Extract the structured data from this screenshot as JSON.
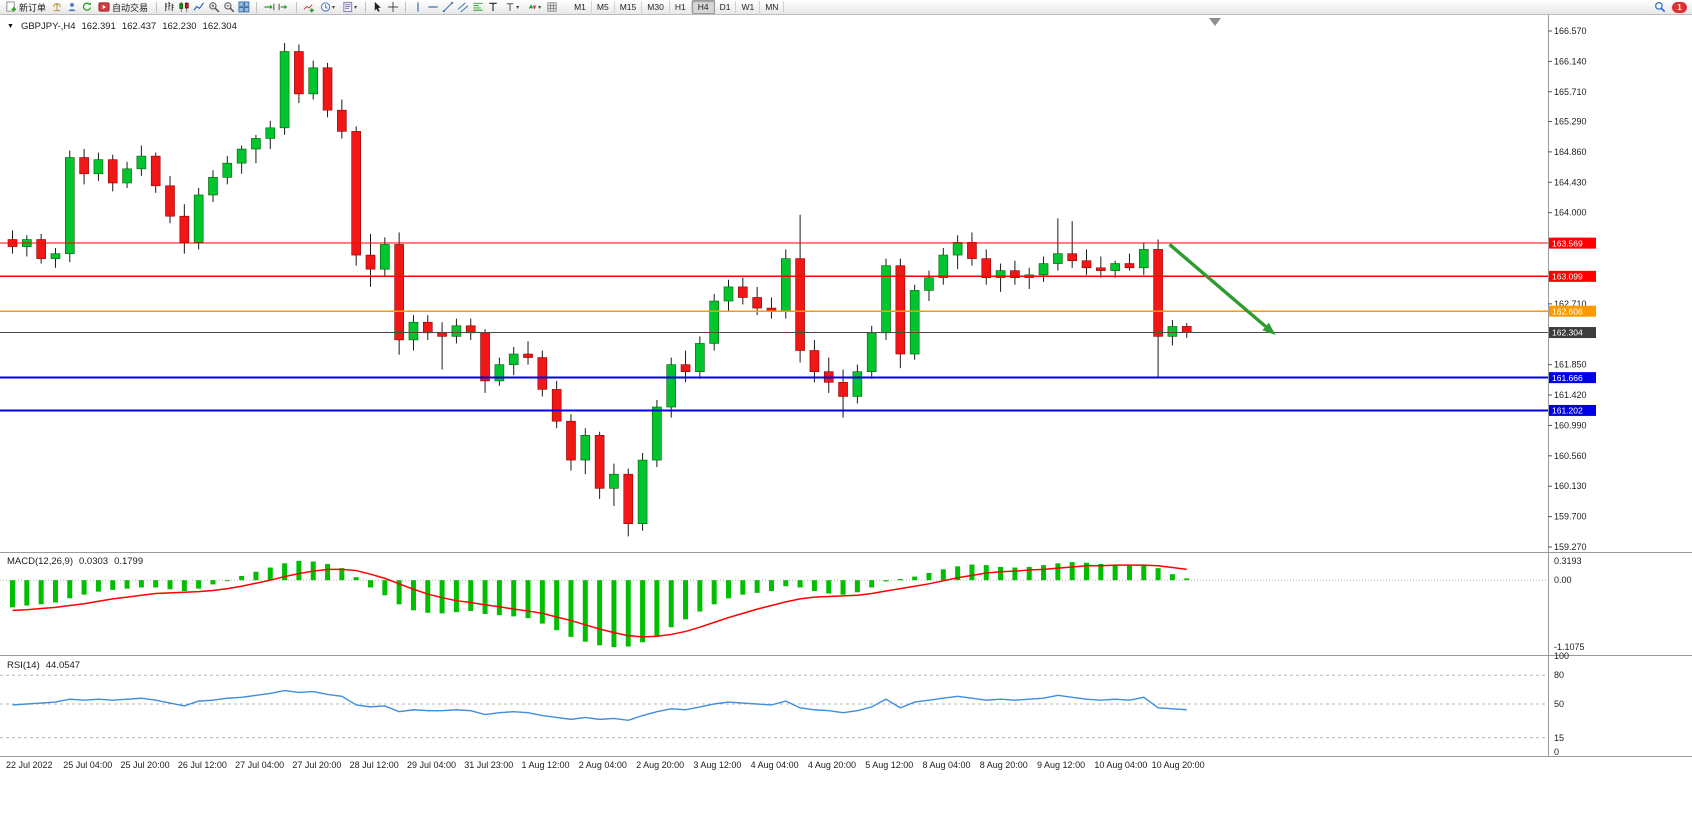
{
  "toolbar": {
    "new_order": "新订单",
    "auto_trading": "自动交易",
    "timeframes": [
      "M1",
      "M5",
      "M15",
      "M30",
      "H1",
      "H4",
      "D1",
      "W1",
      "MN"
    ],
    "active_timeframe": "H4",
    "notification_badge": "1"
  },
  "chart_header": {
    "collapse_icon": "▼",
    "symbol": "GBPJPY-,H4",
    "open": "162.391",
    "high": "162.437",
    "low": "162.230",
    "close": "162.304"
  },
  "price_axis": {
    "ticks": [
      "166.570",
      "166.140",
      "165.710",
      "165.290",
      "164.860",
      "164.430",
      "164.000",
      "162.710",
      "161.850",
      "161.420",
      "160.990",
      "160.560",
      "160.130",
      "159.700",
      "159.270"
    ],
    "line_labels": [
      {
        "text": "163.569",
        "price": 163.569,
        "color": "#FF0000"
      },
      {
        "text": "163.099",
        "price": 163.099,
        "color": "#FF0000"
      },
      {
        "text": "162.606",
        "price": 162.606,
        "color": "#FF9900"
      },
      {
        "text": "162.304",
        "price": 162.304,
        "color": "#3C3C3C"
      },
      {
        "text": "161.666",
        "price": 161.666,
        "color": "#0000E6"
      },
      {
        "text": "161.202",
        "price": 161.202,
        "color": "#0000E6"
      }
    ]
  },
  "time_axis": {
    "labels": [
      {
        "index": 0,
        "text": "22 Jul 2022"
      },
      {
        "index": 4,
        "text": "25 Jul 04:00"
      },
      {
        "index": 8,
        "text": "25 Jul 20:00"
      },
      {
        "index": 12,
        "text": "26 Jul 12:00"
      },
      {
        "index": 16,
        "text": "27 Jul 04:00"
      },
      {
        "index": 20,
        "text": "27 Jul 20:00"
      },
      {
        "index": 24,
        "text": "28 Jul 12:00"
      },
      {
        "index": 28,
        "text": "29 Jul 04:00"
      },
      {
        "index": 32,
        "text": "31 Jul 23:00"
      },
      {
        "index": 36,
        "text": "1 Aug 12:00"
      },
      {
        "index": 40,
        "text": "2 Aug 04:00"
      },
      {
        "index": 44,
        "text": "2 Aug 20:00"
      },
      {
        "index": 48,
        "text": "3 Aug 12:00"
      },
      {
        "index": 52,
        "text": "4 Aug 04:00"
      },
      {
        "index": 56,
        "text": "4 Aug 20:00"
      },
      {
        "index": 60,
        "text": "5 Aug 12:00"
      },
      {
        "index": 64,
        "text": "8 Aug 04:00"
      },
      {
        "index": 68,
        "text": "8 Aug 20:00"
      },
      {
        "index": 72,
        "text": "9 Aug 12:00"
      },
      {
        "index": 76,
        "text": "10 Aug 04:00"
      },
      {
        "index": 80,
        "text": "10 Aug 20:00"
      }
    ]
  },
  "macd_panel": {
    "title": "MACD(12,26,9)",
    "macd_value": "0.0303",
    "signal_value": "0.1799",
    "axis": [
      "0.3193",
      "0.00",
      "-1.1075"
    ]
  },
  "rsi_panel": {
    "title": "RSI(14)",
    "value": "44.0547",
    "axis": [
      "100",
      "80",
      "50",
      "15",
      "0"
    ]
  },
  "chart_data": {
    "type": "candlestick",
    "symbol": "GBPJPY",
    "period": "H4",
    "ylim": [
      159.27,
      166.57
    ],
    "candles": [
      [
        163.62,
        163.75,
        163.42,
        163.52
      ],
      [
        163.52,
        163.68,
        163.38,
        163.62
      ],
      [
        163.62,
        163.7,
        163.28,
        163.35
      ],
      [
        163.35,
        163.5,
        163.22,
        163.42
      ],
      [
        163.42,
        164.88,
        163.3,
        164.78
      ],
      [
        164.78,
        164.9,
        164.4,
        164.55
      ],
      [
        164.55,
        164.85,
        164.45,
        164.75
      ],
      [
        164.75,
        164.82,
        164.3,
        164.42
      ],
      [
        164.42,
        164.72,
        164.35,
        164.62
      ],
      [
        164.62,
        164.95,
        164.52,
        164.8
      ],
      [
        164.8,
        164.85,
        164.28,
        164.38
      ],
      [
        164.38,
        164.52,
        163.85,
        163.95
      ],
      [
        163.95,
        164.12,
        163.42,
        163.58
      ],
      [
        163.58,
        164.35,
        163.48,
        164.25
      ],
      [
        164.25,
        164.6,
        164.15,
        164.5
      ],
      [
        164.5,
        164.8,
        164.4,
        164.7
      ],
      [
        164.7,
        164.95,
        164.55,
        164.9
      ],
      [
        164.9,
        165.1,
        164.7,
        165.05
      ],
      [
        165.05,
        165.3,
        164.9,
        165.2
      ],
      [
        165.2,
        166.4,
        165.1,
        166.28
      ],
      [
        166.28,
        166.38,
        165.55,
        165.68
      ],
      [
        165.68,
        166.15,
        165.6,
        166.05
      ],
      [
        166.05,
        166.12,
        165.35,
        165.45
      ],
      [
        165.45,
        165.6,
        165.05,
        165.15
      ],
      [
        165.15,
        165.22,
        163.25,
        163.4
      ],
      [
        163.4,
        163.7,
        162.95,
        163.2
      ],
      [
        163.2,
        163.65,
        163.1,
        163.55
      ],
      [
        163.55,
        163.72,
        161.99,
        162.2
      ],
      [
        162.2,
        162.55,
        162.05,
        162.45
      ],
      [
        162.45,
        162.55,
        162.2,
        162.3
      ],
      [
        162.3,
        162.45,
        161.78,
        162.25
      ],
      [
        162.25,
        162.5,
        162.15,
        162.4
      ],
      [
        162.4,
        162.5,
        162.2,
        162.3
      ],
      [
        162.3,
        162.35,
        161.45,
        161.62
      ],
      [
        161.62,
        161.95,
        161.55,
        161.85
      ],
      [
        161.85,
        162.1,
        161.7,
        162.0
      ],
      [
        162.0,
        162.18,
        161.85,
        161.95
      ],
      [
        161.95,
        162.05,
        161.4,
        161.5
      ],
      [
        161.5,
        161.62,
        160.95,
        161.05
      ],
      [
        161.05,
        161.15,
        160.35,
        160.5
      ],
      [
        160.5,
        160.95,
        160.3,
        160.85
      ],
      [
        160.85,
        160.9,
        159.95,
        160.1
      ],
      [
        160.1,
        160.45,
        159.85,
        160.3
      ],
      [
        160.3,
        160.38,
        159.42,
        159.6
      ],
      [
        159.6,
        160.6,
        159.5,
        160.5
      ],
      [
        160.5,
        161.35,
        160.4,
        161.25
      ],
      [
        161.25,
        161.95,
        161.1,
        161.85
      ],
      [
        161.85,
        162.05,
        161.6,
        161.75
      ],
      [
        161.75,
        162.25,
        161.65,
        162.15
      ],
      [
        162.15,
        162.85,
        162.05,
        162.75
      ],
      [
        162.75,
        163.05,
        162.6,
        162.95
      ],
      [
        162.95,
        163.08,
        162.7,
        162.8
      ],
      [
        162.8,
        162.95,
        162.55,
        162.65
      ],
      [
        162.65,
        162.8,
        162.5,
        162.6
      ],
      [
        162.6,
        163.48,
        162.5,
        163.35
      ],
      [
        163.35,
        163.97,
        161.88,
        162.05
      ],
      [
        162.05,
        162.2,
        161.6,
        161.75
      ],
      [
        161.75,
        161.95,
        161.45,
        161.6
      ],
      [
        161.6,
        161.78,
        161.1,
        161.4
      ],
      [
        161.4,
        161.85,
        161.3,
        161.75
      ],
      [
        161.75,
        162.4,
        161.65,
        162.3
      ],
      [
        162.3,
        163.35,
        162.2,
        163.25
      ],
      [
        163.25,
        163.35,
        161.8,
        162.0
      ],
      [
        162.0,
        162.98,
        161.92,
        162.9
      ],
      [
        162.9,
        163.18,
        162.75,
        163.08
      ],
      [
        163.08,
        163.5,
        162.98,
        163.4
      ],
      [
        163.4,
        163.68,
        163.2,
        163.58
      ],
      [
        163.58,
        163.72,
        163.25,
        163.35
      ],
      [
        163.35,
        163.48,
        162.98,
        163.08
      ],
      [
        163.08,
        163.28,
        162.88,
        163.18
      ],
      [
        163.18,
        163.32,
        162.98,
        163.08
      ],
      [
        163.08,
        163.22,
        162.92,
        163.12
      ],
      [
        163.12,
        163.38,
        163.02,
        163.28
      ],
      [
        163.28,
        163.92,
        163.18,
        163.42
      ],
      [
        163.42,
        163.88,
        163.22,
        163.32
      ],
      [
        163.32,
        163.48,
        163.12,
        163.22
      ],
      [
        163.22,
        163.38,
        163.08,
        163.18
      ],
      [
        163.18,
        163.32,
        163.08,
        163.28
      ],
      [
        163.28,
        163.42,
        163.18,
        163.22
      ],
      [
        163.22,
        163.58,
        163.12,
        163.48
      ],
      [
        163.48,
        163.62,
        161.67,
        162.25
      ],
      [
        162.25,
        162.48,
        162.12,
        162.39
      ],
      [
        162.391,
        162.437,
        162.23,
        162.304
      ]
    ],
    "horizontal_lines": [
      {
        "price": 163.569,
        "color": "#FF0000",
        "width": 1.2
      },
      {
        "price": 163.099,
        "color": "#FF0000",
        "width": 1.2
      },
      {
        "price": 162.606,
        "color": "#FF9900",
        "width": 1.6
      },
      {
        "price": 162.304,
        "color": "#4A4A4A",
        "width": 1
      },
      {
        "price": 161.666,
        "color": "#0000E6",
        "width": 1.8
      },
      {
        "price": 161.202,
        "color": "#0000E6",
        "width": 1.8
      }
    ],
    "trend_arrow": {
      "from_bar": 80.8,
      "from_price": 163.55,
      "to_bar": 88.2,
      "to_price": 162.27,
      "color": "#2E9B2E"
    },
    "indicators": {
      "macd": {
        "ylim": [
          -1.1075,
          0.3193
        ],
        "hist_color": "#00BE00",
        "signal_color": "#FF0000",
        "histogram": [
          -0.45,
          -0.42,
          -0.4,
          -0.37,
          -0.3,
          -0.24,
          -0.19,
          -0.16,
          -0.14,
          -0.12,
          -0.12,
          -0.15,
          -0.18,
          -0.14,
          -0.07,
          0.0,
          0.07,
          0.14,
          0.21,
          0.28,
          0.32,
          0.31,
          0.27,
          0.2,
          0.05,
          -0.12,
          -0.25,
          -0.4,
          -0.5,
          -0.54,
          -0.55,
          -0.53,
          -0.51,
          -0.56,
          -0.58,
          -0.6,
          -0.63,
          -0.72,
          -0.83,
          -0.94,
          -1.02,
          -1.08,
          -1.11,
          -1.1,
          -1.03,
          -0.92,
          -0.78,
          -0.65,
          -0.52,
          -0.4,
          -0.3,
          -0.24,
          -0.21,
          -0.18,
          -0.1,
          -0.12,
          -0.18,
          -0.22,
          -0.24,
          -0.2,
          -0.12,
          -0.02,
          0.02,
          0.06,
          0.12,
          0.18,
          0.23,
          0.26,
          0.25,
          0.22,
          0.21,
          0.22,
          0.25,
          0.28,
          0.3,
          0.29,
          0.27,
          0.26,
          0.25,
          0.26,
          0.2,
          0.1,
          0.03
        ],
        "signal": [
          -0.5,
          -0.49,
          -0.47,
          -0.45,
          -0.42,
          -0.39,
          -0.35,
          -0.31,
          -0.28,
          -0.25,
          -0.22,
          -0.21,
          -0.2,
          -0.19,
          -0.17,
          -0.14,
          -0.1,
          -0.05,
          0.0,
          0.06,
          0.11,
          0.15,
          0.18,
          0.18,
          0.16,
          0.1,
          0.03,
          -0.06,
          -0.15,
          -0.23,
          -0.29,
          -0.34,
          -0.37,
          -0.41,
          -0.44,
          -0.48,
          -0.51,
          -0.55,
          -0.61,
          -0.67,
          -0.74,
          -0.81,
          -0.87,
          -0.92,
          -0.94,
          -0.93,
          -0.9,
          -0.85,
          -0.78,
          -0.7,
          -0.62,
          -0.55,
          -0.48,
          -0.42,
          -0.36,
          -0.31,
          -0.28,
          -0.27,
          -0.26,
          -0.25,
          -0.22,
          -0.18,
          -0.14,
          -0.1,
          -0.06,
          -0.01,
          0.04,
          0.08,
          0.12,
          0.14,
          0.15,
          0.17,
          0.18,
          0.2,
          0.22,
          0.24,
          0.24,
          0.25,
          0.25,
          0.25,
          0.24,
          0.21,
          0.18
        ]
      },
      "rsi": {
        "color": "#3E8EDE",
        "levels": [
          80,
          50,
          15
        ],
        "values": [
          49,
          50,
          51,
          52,
          55,
          54,
          55,
          54,
          55,
          56,
          54,
          51,
          48,
          53,
          54,
          56,
          57,
          59,
          61,
          64,
          62,
          63,
          60,
          58,
          49,
          47,
          48,
          42,
          44,
          43,
          43,
          44,
          43,
          39,
          41,
          42,
          41,
          38,
          36,
          34,
          36,
          34,
          35,
          33,
          38,
          42,
          45,
          44,
          47,
          50,
          52,
          51,
          50,
          49,
          53,
          46,
          44,
          43,
          41,
          43,
          47,
          55,
          46,
          52,
          54,
          56,
          58,
          56,
          54,
          55,
          54,
          55,
          56,
          59,
          57,
          55,
          54,
          55,
          54,
          57,
          46,
          45,
          44
        ]
      }
    }
  }
}
